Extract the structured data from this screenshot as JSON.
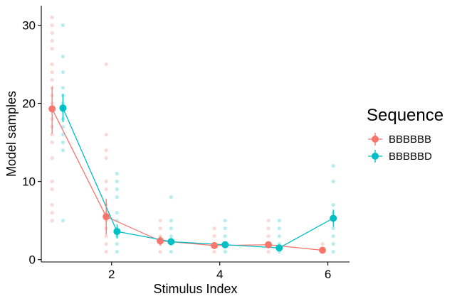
{
  "chart_data": {
    "type": "scatter",
    "xlabel": "Stimulus Index",
    "ylabel": "Model samples",
    "xlim": [
      0.7,
      6.4
    ],
    "ylim": [
      -0.3,
      32.5
    ],
    "xticks": [
      2,
      4,
      6
    ],
    "xtick_labels": [
      "2",
      "4",
      "6"
    ],
    "yticks": [
      0,
      10,
      20,
      30
    ],
    "ytick_labels": [
      "0",
      "10",
      "20",
      "30"
    ],
    "grid": false,
    "legend": {
      "title": "Sequence",
      "position": "right"
    },
    "series": [
      {
        "name": "BBBBBB",
        "color": "#F8766D",
        "dodge": -0.1,
        "mean_x": [
          1,
          2,
          3,
          4,
          5,
          6
        ],
        "mean_y": [
          19.3,
          5.5,
          2.4,
          1.8,
          1.9,
          1.2
        ],
        "error_low": [
          16.1,
          3.2,
          1.8,
          1.4,
          1.5,
          0.9
        ],
        "error_high": [
          22.1,
          7.8,
          3.0,
          2.2,
          2.3,
          1.5
        ],
        "raw": [
          [
            1,
            [
              31,
              30,
              29,
              28,
              27,
              25,
              24,
              23,
              22,
              21,
              20,
              19,
              18,
              17,
              16,
              15,
              13,
              10,
              9,
              7,
              6,
              5
            ]
          ],
          [
            2,
            [
              25,
              16,
              14,
              13,
              10,
              9,
              7,
              6,
              5,
              4,
              3,
              2,
              1
            ]
          ],
          [
            3,
            [
              5,
              4,
              3,
              2,
              1
            ]
          ],
          [
            4,
            [
              4,
              3,
              2,
              1
            ]
          ],
          [
            5,
            [
              5,
              4,
              3,
              2,
              1
            ]
          ],
          [
            6,
            [
              2,
              1
            ]
          ]
        ]
      },
      {
        "name": "BBBBBD",
        "color": "#00BFC4",
        "dodge": 0.1,
        "mean_x": [
          1,
          2,
          3,
          4,
          5,
          6
        ],
        "mean_y": [
          19.4,
          3.6,
          2.3,
          1.9,
          1.5,
          5.3
        ],
        "error_low": [
          17.6,
          2.7,
          1.9,
          1.6,
          1.2,
          4.2
        ],
        "error_high": [
          21.2,
          4.5,
          2.7,
          2.2,
          1.8,
          6.4
        ],
        "raw": [
          [
            1,
            [
              30,
              26,
              24,
              22,
              21,
              20,
              19,
              18,
              17,
              16,
              15,
              14,
              5
            ]
          ],
          [
            2,
            [
              11,
              10,
              9,
              8,
              6,
              5,
              4,
              3,
              2,
              1
            ]
          ],
          [
            3,
            [
              8,
              5,
              4,
              3,
              2,
              1
            ]
          ],
          [
            4,
            [
              5,
              4,
              3,
              2,
              1
            ]
          ],
          [
            5,
            [
              5,
              4,
              3,
              2,
              1
            ]
          ],
          [
            6,
            [
              12,
              10,
              7,
              6,
              5,
              4,
              3,
              2,
              1
            ]
          ]
        ]
      }
    ]
  }
}
